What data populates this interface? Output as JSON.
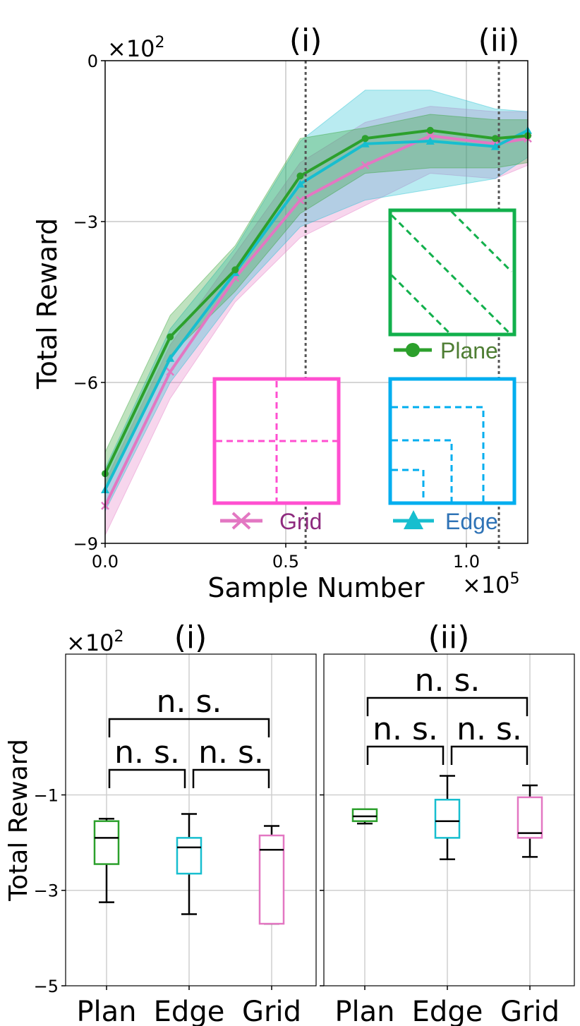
{
  "colors": {
    "plane": "#2ca02c",
    "edge": "#17becf",
    "grid": "#e377c2",
    "plane_legend_box": "#12b04c",
    "edge_legend_box": "#00aeef",
    "grid_legend_box": "#ff4fd0",
    "plane_legend_text": "#4e7d33",
    "edge_legend_text": "#2f73b6",
    "grid_legend_text": "#8e2a7e"
  },
  "chart_data": [
    {
      "type": "line",
      "xlabel": "Sample Number",
      "ylabel": "Total Reward",
      "x_multiplier": "×10",
      "x_multiplier_exp": "5",
      "y_multiplier": "×10",
      "y_multiplier_exp": "2",
      "xlim": [
        0,
        1.17
      ],
      "ylim": [
        -9,
        0
      ],
      "xticks": [
        0.0,
        0.5,
        1.0
      ],
      "xtick_labels": [
        "0.0",
        "0.5",
        "1.0"
      ],
      "yticks": [
        0,
        -3,
        -6,
        -9
      ],
      "ytick_labels": [
        "0",
        "−3",
        "−6",
        "−9"
      ],
      "grid": true,
      "x": [
        0.0,
        0.18,
        0.36,
        0.54,
        0.72,
        0.9,
        1.08,
        1.17
      ],
      "series": [
        {
          "name": "Plane",
          "values": [
            -7.7,
            -5.15,
            -3.9,
            -2.15,
            -1.45,
            -1.3,
            -1.45,
            -1.4
          ],
          "lower": [
            -8.0,
            -5.5,
            -4.3,
            -2.85,
            -2.1,
            -2.0,
            -2.0,
            -1.9
          ],
          "upper": [
            -7.3,
            -4.75,
            -3.45,
            -1.45,
            -1.25,
            -1.0,
            -1.1,
            -1.1
          ]
        },
        {
          "name": "Edge",
          "values": [
            -8.0,
            -5.55,
            -3.95,
            -2.3,
            -1.55,
            -1.5,
            -1.6,
            -1.3
          ],
          "lower": [
            -8.4,
            -6.0,
            -4.4,
            -3.1,
            -2.6,
            -2.4,
            -2.2,
            -1.8
          ],
          "upper": [
            -7.6,
            -5.0,
            -3.5,
            -1.5,
            -0.55,
            -0.55,
            -0.9,
            -0.95
          ]
        },
        {
          "name": "Grid",
          "values": [
            -8.3,
            -5.8,
            -4.05,
            -2.6,
            -1.95,
            -1.4,
            -1.55,
            -1.45
          ],
          "lower": [
            -8.85,
            -6.3,
            -4.5,
            -3.3,
            -2.7,
            -2.1,
            -2.2,
            -1.95
          ],
          "upper": [
            -7.85,
            -5.3,
            -3.6,
            -1.9,
            -1.15,
            -0.85,
            -0.95,
            -0.95
          ]
        }
      ],
      "vlines": [
        {
          "x": 0.555,
          "label": "(i)"
        },
        {
          "x": 1.09,
          "label": "(ii)"
        }
      ],
      "legend": [
        "Plane",
        "Edge",
        "Grid"
      ]
    },
    {
      "type": "box",
      "title": "(i)",
      "ylabel": "Total Reward",
      "y_multiplier": "×10",
      "y_multiplier_exp": "2",
      "ylim": [
        -5,
        1.95
      ],
      "yticks": [
        -1,
        -3,
        -5
      ],
      "ytick_labels": [
        "−1",
        "−3",
        "−5"
      ],
      "categories": [
        "Plan",
        "Edge",
        "Grid"
      ],
      "boxes": [
        {
          "name": "Plan",
          "whislo": -3.25,
          "q1": -2.45,
          "med": -1.9,
          "q3": -1.55,
          "whishi": -1.5
        },
        {
          "name": "Edge",
          "whislo": -3.5,
          "q1": -2.65,
          "med": -2.1,
          "q3": -1.9,
          "whishi": -1.4
        },
        {
          "name": "Grid",
          "whislo": -3.7,
          "q1": -3.7,
          "med": -2.15,
          "q3": -1.85,
          "whishi": -1.65
        }
      ],
      "annotations": [
        {
          "from": 0,
          "to": 1,
          "level": 0,
          "text": "n. s."
        },
        {
          "from": 1,
          "to": 2,
          "level": 0,
          "text": "n. s."
        },
        {
          "from": 0,
          "to": 2,
          "level": 1,
          "text": "n. s."
        }
      ]
    },
    {
      "type": "box",
      "title": "(ii)",
      "ylim": [
        -5,
        1.95
      ],
      "categories": [
        "Plan",
        "Edge",
        "Grid"
      ],
      "boxes": [
        {
          "name": "Plan",
          "whislo": -1.6,
          "q1": -1.55,
          "med": -1.45,
          "q3": -1.3,
          "whishi": -1.3
        },
        {
          "name": "Edge",
          "whislo": -2.35,
          "q1": -1.9,
          "med": -1.55,
          "q3": -1.1,
          "whishi": -0.6
        },
        {
          "name": "Grid",
          "whislo": -2.3,
          "q1": -1.9,
          "med": -1.8,
          "q3": -1.05,
          "whishi": -0.8
        }
      ],
      "annotations": [
        {
          "from": 0,
          "to": 1,
          "level": 0,
          "text": "n. s."
        },
        {
          "from": 1,
          "to": 2,
          "level": 0,
          "text": "n. s."
        },
        {
          "from": 0,
          "to": 2,
          "level": 1,
          "text": "n. s."
        }
      ]
    }
  ]
}
